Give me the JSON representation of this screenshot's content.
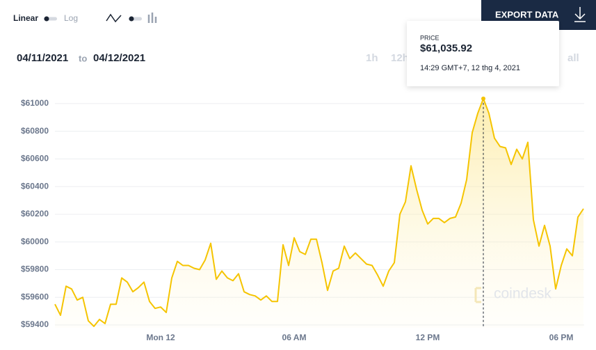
{
  "controls": {
    "linear": "Linear",
    "log": "Log",
    "export": "EXPORT DATA"
  },
  "date_range": {
    "from": "04/11/2021",
    "to_word": "to",
    "to": "04/12/2021"
  },
  "ranges": [
    "1h",
    "12h",
    "all"
  ],
  "watermark": "coindesk",
  "tooltip": {
    "label": "PRICE",
    "value_label": "$61,035.92",
    "time": "14:29 GMT+7, 12 thg 4, 2021"
  },
  "chart_data": {
    "type": "line",
    "color": "#f5c400",
    "grid": true,
    "categories": [
      null,
      null,
      null,
      null,
      null,
      null,
      null,
      null,
      null,
      null,
      null,
      null,
      null,
      null,
      null,
      null,
      null,
      null,
      null,
      "Mon 12",
      null,
      null,
      null,
      null,
      null,
      null,
      null,
      null,
      null,
      null,
      null,
      null,
      null,
      null,
      null,
      null,
      null,
      null,
      null,
      null,
      null,
      null,
      null,
      "06 AM",
      null,
      null,
      null,
      null,
      null,
      null,
      null,
      null,
      null,
      null,
      null,
      null,
      null,
      null,
      null,
      null,
      null,
      null,
      null,
      null,
      null,
      null,
      null,
      "12 PM",
      null,
      null,
      null,
      null,
      null,
      null,
      null,
      null,
      null,
      null,
      null,
      null,
      null,
      null,
      null,
      null,
      null,
      null,
      null,
      null,
      null,
      null,
      null,
      "06 PM",
      null,
      null,
      null,
      null
    ],
    "values": [
      59550,
      59470,
      59680,
      59660,
      59580,
      59600,
      59430,
      59390,
      59440,
      59410,
      59550,
      59550,
      59740,
      59710,
      59640,
      59670,
      59710,
      59570,
      59520,
      59530,
      59490,
      59740,
      59860,
      59830,
      59830,
      59810,
      59800,
      59870,
      59990,
      59730,
      59790,
      59740,
      59720,
      59770,
      59640,
      59620,
      59610,
      59580,
      59610,
      59570,
      59570,
      59980,
      59830,
      60030,
      59930,
      59910,
      60020,
      60020,
      59850,
      59650,
      59790,
      59810,
      59970,
      59880,
      59920,
      59880,
      59840,
      59830,
      59760,
      59680,
      59790,
      59850,
      60200,
      60290,
      60550,
      60380,
      60230,
      60130,
      60170,
      60170,
      60140,
      60170,
      60180,
      60280,
      60450,
      60790,
      60930,
      61035.92,
      60930,
      60750,
      60690,
      60680,
      60560,
      60670,
      60600,
      60720,
      60160,
      59970,
      60120,
      59970,
      59660,
      59830,
      59950,
      59900,
      60180,
      60240
    ],
    "ylim": [
      59380,
      61120
    ],
    "yticks": [
      {
        "value": 59400,
        "label": "$59400"
      },
      {
        "value": 59600,
        "label": "$59600"
      },
      {
        "value": 59800,
        "label": "$59800"
      },
      {
        "value": 60000,
        "label": "$60000"
      },
      {
        "value": 60200,
        "label": "$60200"
      },
      {
        "value": 60400,
        "label": "$60400"
      },
      {
        "value": 60600,
        "label": "$60600"
      },
      {
        "value": 60800,
        "label": "$60800"
      },
      {
        "value": 61000,
        "label": "$61000"
      }
    ]
  }
}
